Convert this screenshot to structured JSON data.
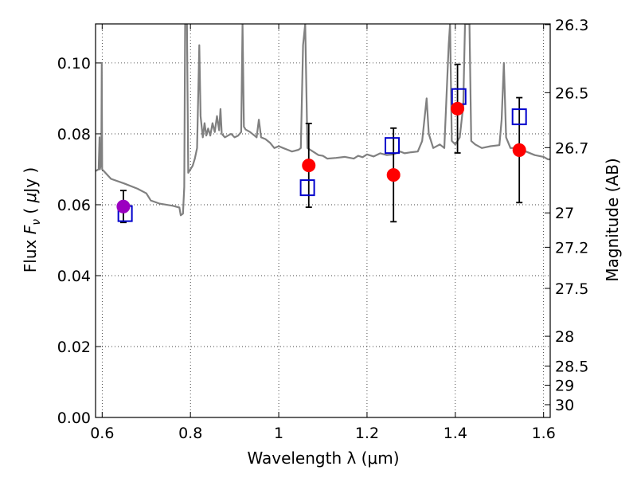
{
  "chart_data": {
    "type": "scatter",
    "xlabel": "Wavelength  λ (μm)",
    "ylabel_parts": [
      "Flux ",
      "F",
      "ν",
      " ( ",
      "μ",
      "Jy )"
    ],
    "y2label": "Magnitude (AB)",
    "xlim": [
      0.585,
      1.615
    ],
    "ylim": [
      0.0,
      0.111
    ],
    "grid": true,
    "x_ticks": [
      0.6,
      0.8,
      1.0,
      1.2,
      1.4,
      1.6
    ],
    "x_tick_labels": [
      "0.6",
      "0.8",
      "1",
      "1.2",
      "1.4",
      "1.6"
    ],
    "y_ticks": [
      0.0,
      0.02,
      0.04,
      0.06,
      0.08,
      0.1
    ],
    "y_tick_labels": [
      "0.00",
      "0.02",
      "0.04",
      "0.06",
      "0.08",
      "0.10"
    ],
    "y2_ticks": [
      {
        "label": "26.3",
        "flux": 0.1108
      },
      {
        "label": "26.5",
        "flux": 0.0916
      },
      {
        "label": "26.7",
        "flux": 0.0761
      },
      {
        "label": "27",
        "flux": 0.0577
      },
      {
        "label": "27.2",
        "flux": 0.048
      },
      {
        "label": "27.5",
        "flux": 0.0364
      },
      {
        "label": "28",
        "flux": 0.0229
      },
      {
        "label": "28.5",
        "flux": 0.0145
      },
      {
        "label": "29",
        "flux": 0.0091
      },
      {
        "label": "30",
        "flux": 0.0036
      }
    ],
    "series": [
      {
        "kind": "line",
        "color": "#808080",
        "points": [
          [
            0.585,
            0.0695
          ],
          [
            0.592,
            0.07
          ],
          [
            0.594,
            0.079
          ],
          [
            0.595,
            0.07
          ],
          [
            0.598,
            0.072
          ],
          [
            0.599,
            0.1
          ],
          [
            0.6,
            0.07
          ],
          [
            0.62,
            0.0673
          ],
          [
            0.65,
            0.066
          ],
          [
            0.68,
            0.0645
          ],
          [
            0.7,
            0.0632
          ],
          [
            0.71,
            0.0612
          ],
          [
            0.73,
            0.0603
          ],
          [
            0.76,
            0.0597
          ],
          [
            0.775,
            0.0592
          ],
          [
            0.778,
            0.057
          ],
          [
            0.783,
            0.0575
          ],
          [
            0.786,
            0.065
          ],
          [
            0.788,
            0.111
          ],
          [
            0.792,
            0.111
          ],
          [
            0.795,
            0.069
          ],
          [
            0.8,
            0.07
          ],
          [
            0.805,
            0.071
          ],
          [
            0.81,
            0.073
          ],
          [
            0.815,
            0.076
          ],
          [
            0.82,
            0.105
          ],
          [
            0.823,
            0.085
          ],
          [
            0.828,
            0.079
          ],
          [
            0.832,
            0.083
          ],
          [
            0.836,
            0.0795
          ],
          [
            0.84,
            0.0815
          ],
          [
            0.845,
            0.0795
          ],
          [
            0.85,
            0.083
          ],
          [
            0.855,
            0.0805
          ],
          [
            0.86,
            0.085
          ],
          [
            0.865,
            0.081
          ],
          [
            0.868,
            0.087
          ],
          [
            0.871,
            0.08
          ],
          [
            0.878,
            0.079
          ],
          [
            0.885,
            0.0795
          ],
          [
            0.892,
            0.08
          ],
          [
            0.9,
            0.079
          ],
          [
            0.908,
            0.0795
          ],
          [
            0.915,
            0.0805
          ],
          [
            0.918,
            0.111
          ],
          [
            0.921,
            0.082
          ],
          [
            0.925,
            0.0812
          ],
          [
            0.935,
            0.0805
          ],
          [
            0.945,
            0.0795
          ],
          [
            0.95,
            0.079
          ],
          [
            0.955,
            0.084
          ],
          [
            0.96,
            0.079
          ],
          [
            0.97,
            0.0785
          ],
          [
            0.98,
            0.0775
          ],
          [
            0.99,
            0.076
          ],
          [
            1.0,
            0.0765
          ],
          [
            1.01,
            0.076
          ],
          [
            1.02,
            0.0755
          ],
          [
            1.03,
            0.075
          ],
          [
            1.045,
            0.0755
          ],
          [
            1.05,
            0.076
          ],
          [
            1.055,
            0.105
          ],
          [
            1.06,
            0.111
          ],
          [
            1.065,
            0.076
          ],
          [
            1.08,
            0.0748
          ],
          [
            1.09,
            0.074
          ],
          [
            1.1,
            0.0738
          ],
          [
            1.11,
            0.073
          ],
          [
            1.13,
            0.0732
          ],
          [
            1.15,
            0.0735
          ],
          [
            1.17,
            0.073
          ],
          [
            1.18,
            0.0738
          ],
          [
            1.19,
            0.0734
          ],
          [
            1.2,
            0.0742
          ],
          [
            1.215,
            0.0736
          ],
          [
            1.23,
            0.0745
          ],
          [
            1.245,
            0.074
          ],
          [
            1.26,
            0.0742
          ],
          [
            1.275,
            0.075
          ],
          [
            1.285,
            0.0745
          ],
          [
            1.3,
            0.0748
          ],
          [
            1.315,
            0.075
          ],
          [
            1.325,
            0.078
          ],
          [
            1.335,
            0.09
          ],
          [
            1.34,
            0.08
          ],
          [
            1.35,
            0.076
          ],
          [
            1.365,
            0.077
          ],
          [
            1.375,
            0.076
          ],
          [
            1.385,
            0.105
          ],
          [
            1.388,
            0.111
          ],
          [
            1.392,
            0.078
          ],
          [
            1.4,
            0.077
          ],
          [
            1.41,
            0.079
          ],
          [
            1.418,
            0.088
          ],
          [
            1.422,
            0.111
          ],
          [
            1.432,
            0.111
          ],
          [
            1.436,
            0.078
          ],
          [
            1.445,
            0.077
          ],
          [
            1.46,
            0.076
          ],
          [
            1.48,
            0.0765
          ],
          [
            1.5,
            0.0768
          ],
          [
            1.505,
            0.084
          ],
          [
            1.51,
            0.1
          ],
          [
            1.515,
            0.079
          ],
          [
            1.525,
            0.076
          ],
          [
            1.54,
            0.076
          ],
          [
            1.56,
            0.075
          ],
          [
            1.58,
            0.074
          ],
          [
            1.6,
            0.0735
          ],
          [
            1.61,
            0.0728
          ],
          [
            1.615,
            0.0728
          ]
        ]
      },
      {
        "kind": "observed",
        "marker": "circle",
        "points": [
          {
            "x": 0.648,
            "y": 0.0595,
            "err": 0.0045,
            "color": "#9b00c0"
          },
          {
            "x": 1.068,
            "y": 0.0711,
            "err": 0.0118,
            "color": "#ff0000"
          },
          {
            "x": 1.26,
            "y": 0.0684,
            "err": 0.0132,
            "color": "#ff0000"
          },
          {
            "x": 1.405,
            "y": 0.0871,
            "err": 0.0125,
            "color": "#ff0000"
          },
          {
            "x": 1.545,
            "y": 0.0754,
            "err": 0.0148,
            "color": "#ff0000"
          }
        ]
      },
      {
        "kind": "model",
        "marker": "open-square",
        "color": "#0000cc",
        "points": [
          {
            "x": 0.652,
            "y": 0.0575
          },
          {
            "x": 1.065,
            "y": 0.0648
          },
          {
            "x": 1.257,
            "y": 0.0767
          },
          {
            "x": 1.408,
            "y": 0.0905
          },
          {
            "x": 1.545,
            "y": 0.0848
          }
        ]
      }
    ]
  }
}
